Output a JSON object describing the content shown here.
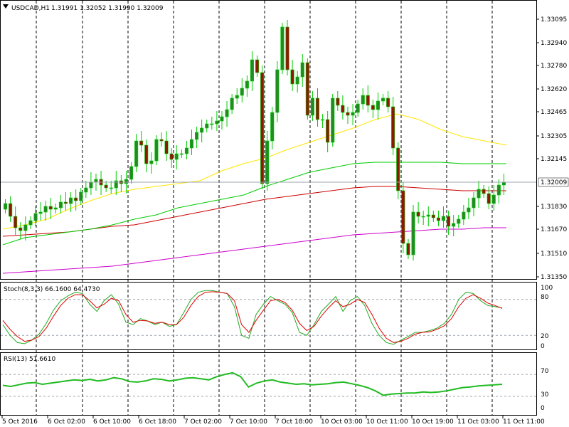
{
  "header": {
    "symbol_timeframe": "USDCAD,H1",
    "ohlc": "1.31991 1.32052 1.31990 1.32009"
  },
  "colors": {
    "up": "#228B22",
    "down": "#8B1A00",
    "wick_up": "#00CC00",
    "ma_fast": "#FFE600",
    "ma_mid": "#00CC00",
    "ma_slow": "#CC0000",
    "ma_long": "#CC00CC",
    "stoch_main": "#22AA22",
    "stoch_signal": "#DD0000",
    "rsi": "#22BB22"
  },
  "chart_data": [
    {
      "type": "candlestick",
      "title": "USDCAD,H1",
      "ylim": [
        1.3135,
        1.3325
      ],
      "y_ticks": [
        "1.33095",
        "1.32940",
        "1.32780",
        "1.32620",
        "1.32465",
        "1.32305",
        "1.32145",
        "1.31830",
        "1.31670",
        "1.31510",
        "1.31350"
      ],
      "current_price": "1.32009",
      "x_labels": [
        "5 Oct 2016",
        "6 Oct 02:00",
        "6 Oct 10:00",
        "6 Oct 18:00",
        "7 Oct 02:00",
        "7 Oct 10:00",
        "7 Oct 18:00",
        "10 Oct 03:00",
        "10 Oct 11:00",
        "10 Oct 19:00",
        "11 Oct 03:00",
        "11 Oct 11:00"
      ],
      "closes": [
        1.3186,
        1.3177,
        1.3169,
        1.3167,
        1.3171,
        1.3174,
        1.3179,
        1.318,
        1.3184,
        1.3182,
        1.3183,
        1.3187,
        1.3186,
        1.319,
        1.3188,
        1.3194,
        1.3197,
        1.3201,
        1.3203,
        1.3199,
        1.3197,
        1.3197,
        1.3202,
        1.32,
        1.3203,
        1.3212,
        1.323,
        1.3227,
        1.3214,
        1.3216,
        1.3231,
        1.323,
        1.3221,
        1.3217,
        1.3221,
        1.3221,
        1.3225,
        1.3231,
        1.3236,
        1.3239,
        1.3242,
        1.3242,
        1.3244,
        1.3247,
        1.3252,
        1.326,
        1.3262,
        1.3267,
        1.3272,
        1.3287,
        1.3278,
        1.32,
        1.323,
        1.325,
        1.328,
        1.331,
        1.328,
        1.327,
        1.3275,
        1.3285,
        1.3248,
        1.326,
        1.3245,
        1.3245,
        1.3229,
        1.326,
        1.3255,
        1.325,
        1.3248,
        1.325,
        1.3256,
        1.3262,
        1.3255,
        1.3252,
        1.3258,
        1.326,
        1.3254,
        1.3225,
        1.3195,
        1.3158,
        1.315,
        1.318,
        1.3177,
        1.3177,
        1.3178,
        1.3176,
        1.3174,
        1.3177,
        1.317,
        1.3172,
        1.3175,
        1.318,
        1.3183,
        1.319,
        1.3196,
        1.3193,
        1.3186,
        1.3192,
        1.3199,
        1.3201
      ],
      "ma_fast": [
        1.3168,
        1.3171,
        1.3175,
        1.3182,
        1.3188,
        1.3193,
        1.3196,
        1.3198,
        1.32,
        1.3202,
        1.3209,
        1.3214,
        1.3218,
        1.3224,
        1.3229,
        1.3234,
        1.3239,
        1.3245,
        1.3249,
        1.3245,
        1.3238,
        1.3233,
        1.323,
        1.3227
      ],
      "ma_mid": [
        1.3157,
        1.3162,
        1.3164,
        1.3166,
        1.3168,
        1.3171,
        1.3175,
        1.3178,
        1.3183,
        1.3186,
        1.3189,
        1.3192,
        1.3198,
        1.3203,
        1.3208,
        1.3211,
        1.3214,
        1.3215,
        1.3215,
        1.3215,
        1.3215,
        1.3214,
        1.3214,
        1.3214
      ],
      "ma_slow": [
        1.3163,
        1.3164,
        1.3165,
        1.3166,
        1.3168,
        1.317,
        1.3171,
        1.3174,
        1.3177,
        1.318,
        1.3183,
        1.3186,
        1.3189,
        1.3191,
        1.3193,
        1.3195,
        1.3197,
        1.3198,
        1.3198,
        1.3197,
        1.3196,
        1.3195,
        1.3195,
        1.3195
      ],
      "ma_long": [
        1.3137,
        1.3138,
        1.3139,
        1.314,
        1.3141,
        1.3142,
        1.3144,
        1.3146,
        1.3148,
        1.315,
        1.3152,
        1.3154,
        1.3156,
        1.3158,
        1.316,
        1.3162,
        1.3164,
        1.3165,
        1.3166,
        1.3167,
        1.3168,
        1.3168,
        1.3169,
        1.3169
      ]
    },
    {
      "type": "line",
      "title": "Stoch(8,3,3) 66.1600 64.4730",
      "ylim": [
        0,
        100
      ],
      "y_ticks": [
        "100",
        "80",
        "20",
        "0"
      ],
      "series": [
        {
          "name": "Stoch main",
          "values": [
            38,
            20,
            8,
            6,
            12,
            22,
            40,
            62,
            78,
            86,
            92,
            90,
            72,
            60,
            78,
            88,
            72,
            42,
            38,
            48,
            44,
            38,
            42,
            35,
            38,
            58,
            80,
            92,
            95,
            95,
            92,
            90,
            68,
            20,
            15,
            55,
            72,
            85,
            78,
            72,
            58,
            25,
            20,
            38,
            60,
            72,
            85,
            60,
            78,
            85,
            70,
            40,
            20,
            8,
            5,
            12,
            18,
            25,
            25,
            28,
            32,
            40,
            55,
            80,
            92,
            90,
            78,
            70,
            68,
            66
          ]
        },
        {
          "name": "Stoch signal",
          "values": [
            45,
            30,
            18,
            10,
            12,
            18,
            32,
            52,
            70,
            82,
            88,
            88,
            78,
            66,
            72,
            82,
            78,
            55,
            42,
            45,
            44,
            40,
            42,
            38,
            38,
            50,
            70,
            85,
            92,
            93,
            92,
            90,
            78,
            38,
            25,
            45,
            62,
            78,
            80,
            75,
            62,
            40,
            28,
            35,
            52,
            66,
            78,
            68,
            72,
            80,
            75,
            55,
            32,
            15,
            8,
            10,
            15,
            22,
            25,
            26,
            30,
            36,
            48,
            68,
            82,
            88,
            82,
            74,
            70,
            65
          ]
        }
      ]
    },
    {
      "type": "line",
      "title": "RSI(13) 51.6610",
      "ylim": [
        0,
        100
      ],
      "y_ticks": [
        "70",
        "30",
        "0"
      ],
      "series": [
        {
          "name": "RSI(13)",
          "values": [
            50,
            48,
            51,
            54,
            55,
            52,
            54,
            56,
            58,
            60,
            59,
            61,
            58,
            60,
            64,
            62,
            57,
            56,
            58,
            62,
            61,
            58,
            60,
            63,
            64,
            62,
            60,
            66,
            70,
            73,
            66,
            47,
            54,
            58,
            60,
            56,
            54,
            52,
            53,
            51,
            52,
            53,
            55,
            56,
            53,
            50,
            46,
            40,
            32,
            34,
            35,
            36,
            36,
            38,
            37,
            38,
            40,
            43,
            46,
            47,
            49,
            50,
            51,
            52
          ]
        }
      ]
    }
  ]
}
